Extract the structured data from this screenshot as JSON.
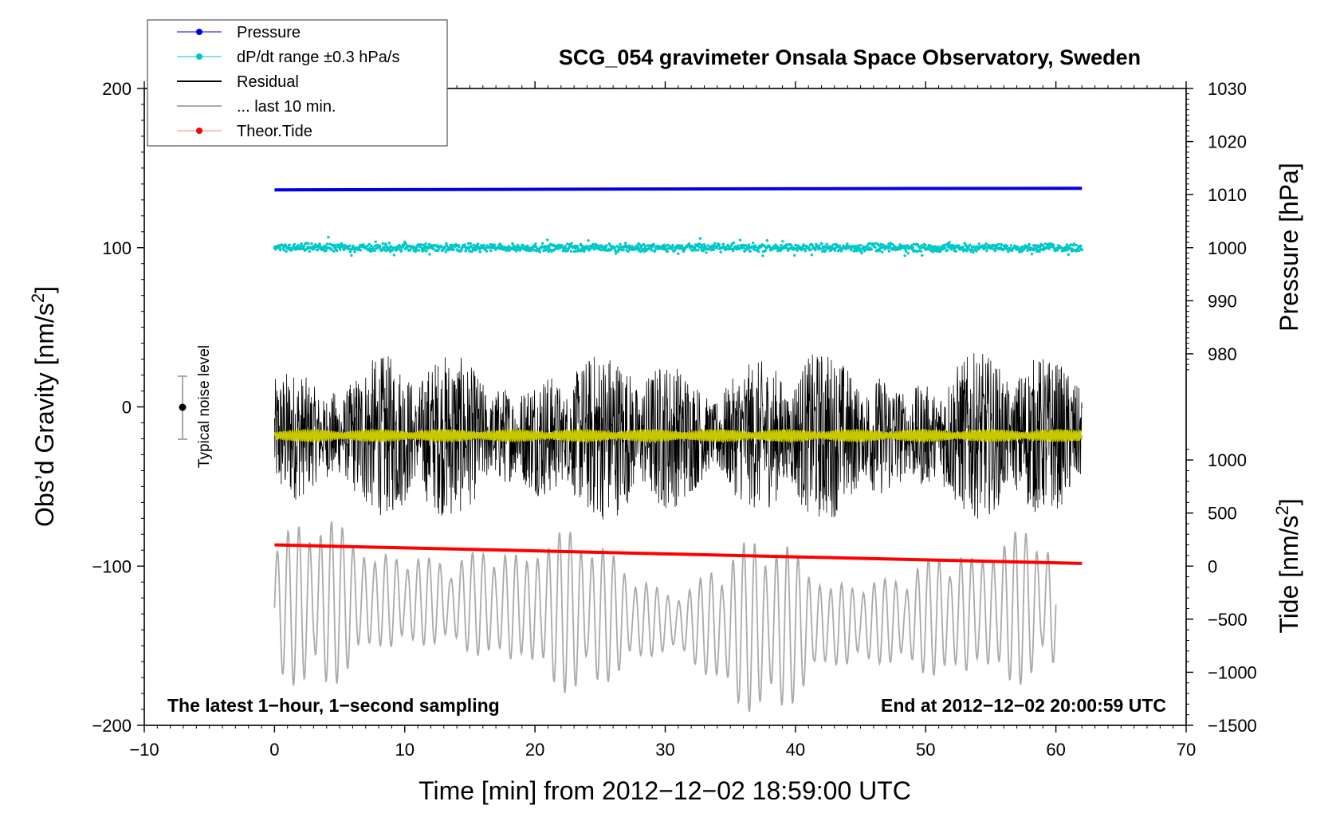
{
  "chart_data": {
    "type": "line",
    "title": "SCG_054 gravimeter Onsala Space Observatory, Sweden",
    "xlabel": "Time [min] from 2012−12−02 18:59:00 UTC",
    "xlim": [
      -10,
      70
    ],
    "xticks": [
      "−10",
      "0",
      "10",
      "20",
      "30",
      "40",
      "50",
      "60",
      "70"
    ],
    "left_axis": {
      "label_main": "Obs’d Gravity [nm/s",
      "label_sup": "2",
      "label_end": "]",
      "ylim": [
        -200,
        200
      ],
      "ticks": [
        "200",
        "100",
        "0",
        "−100",
        "−200"
      ]
    },
    "right_axis_pressure": {
      "label": "Pressure [hPa]",
      "ylim": [
        970,
        1030
      ],
      "ticks": [
        "1030",
        "1020",
        "1010",
        "1000",
        "990",
        "980"
      ]
    },
    "right_axis_tide": {
      "label_main": "Tide [nm/s",
      "label_sup": "2",
      "label_end": "]",
      "ylim": [
        -1500,
        1500
      ],
      "ticks": [
        "1000",
        "500",
        "0",
        "−500",
        "−1000",
        "−1500"
      ]
    },
    "legend": {
      "position": "top-left",
      "entries": [
        "Pressure",
        "dP/dt range ±0.3 hPa/s",
        "Residual",
        "... last 10 min.",
        "Theor.Tide"
      ]
    },
    "series": [
      {
        "name": "Pressure",
        "color": "#0000e6",
        "axis": "pressure",
        "x": [
          0,
          20,
          40,
          62
        ],
        "values": [
          1010.9,
          1011.0,
          1011.1,
          1011.2
        ]
      },
      {
        "name": "dP/dt range ±0.3 hPa/s",
        "color": "#00c8c8",
        "axis": "left",
        "x_range": [
          0,
          62
        ],
        "center": 100,
        "spread": 3
      },
      {
        "name": "Residual",
        "color": "#000000",
        "axis": "left",
        "x_range": [
          0,
          62
        ],
        "center": -18,
        "amplitude": 45
      },
      {
        "name": "Residual (smoothed)",
        "color": "#c8c800",
        "axis": "left",
        "x_range": [
          0,
          62
        ],
        "center": -18,
        "amplitude": 4
      },
      {
        "name": "... last 10 min.",
        "color": "#aaaaaa",
        "axis": "left",
        "x_range": [
          0,
          60
        ],
        "center": -130,
        "amplitude": 50
      },
      {
        "name": "Theor.Tide",
        "color": "#ff0000",
        "axis": "tide",
        "x": [
          0,
          62
        ],
        "values": [
          200,
          25
        ]
      }
    ],
    "noise_indicator": {
      "label": "Typical noise level",
      "x": -7,
      "center": 0,
      "half_range": 20
    },
    "annotations": {
      "bottom_left": "The latest 1−hour, 1−second sampling",
      "bottom_right": "End at 2012−12−02 20:00:59 UTC"
    }
  }
}
